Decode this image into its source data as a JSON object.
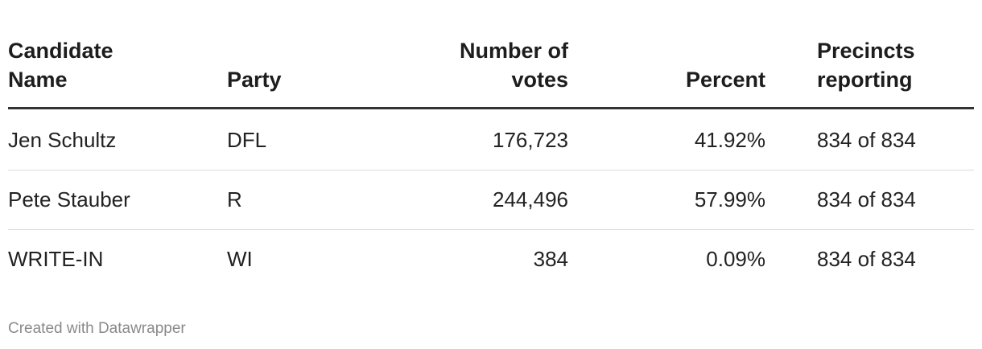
{
  "table": {
    "columns": [
      "Candidate Name",
      "Party",
      "Number of votes",
      "Percent",
      "Precincts reporting"
    ],
    "rows": [
      [
        "Jen Schultz",
        "DFL",
        "176,723",
        "41.92%",
        "834 of 834"
      ],
      [
        "Pete Stauber",
        "R",
        "244,496",
        "57.99%",
        "834 of 834"
      ],
      [
        "WRITE-IN",
        "WI",
        "384",
        "0.09%",
        "834 of 834"
      ]
    ]
  },
  "footer": {
    "credit": "Created with Datawrapper"
  }
}
